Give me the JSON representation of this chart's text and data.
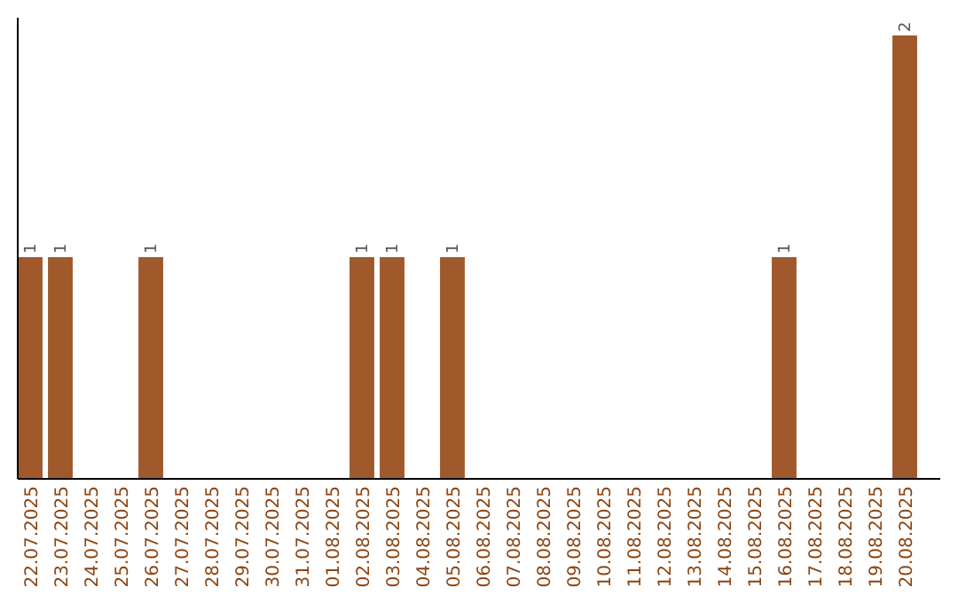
{
  "chart_data": {
    "type": "bar",
    "categories": [
      "22.07.2025",
      "23.07.2025",
      "24.07.2025",
      "25.07.2025",
      "26.07.2025",
      "27.07.2025",
      "28.07.2025",
      "29.07.2025",
      "30.07.2025",
      "31.07.2025",
      "01.08.2025",
      "02.08.2025",
      "03.08.2025",
      "04.08.2025",
      "05.08.2025",
      "06.08.2025",
      "07.08.2025",
      "08.08.2025",
      "09.08.2025",
      "10.08.2025",
      "11.08.2025",
      "12.08.2025",
      "13.08.2025",
      "14.08.2025",
      "15.08.2025",
      "16.08.2025",
      "17.08.2025",
      "18.08.2025",
      "19.08.2025",
      "20.08.2025"
    ],
    "values": [
      1,
      1,
      0,
      0,
      1,
      0,
      0,
      0,
      0,
      0,
      0,
      1,
      1,
      0,
      1,
      0,
      0,
      0,
      0,
      0,
      0,
      0,
      0,
      0,
      0,
      1,
      0,
      0,
      0,
      2
    ],
    "value_labels": [
      "1",
      "1",
      null,
      null,
      "1",
      null,
      null,
      null,
      null,
      null,
      null,
      "1",
      "1",
      null,
      "1",
      null,
      null,
      null,
      null,
      null,
      null,
      null,
      null,
      null,
      null,
      "1",
      null,
      null,
      null,
      "2"
    ],
    "color": "#a0592b"
  }
}
